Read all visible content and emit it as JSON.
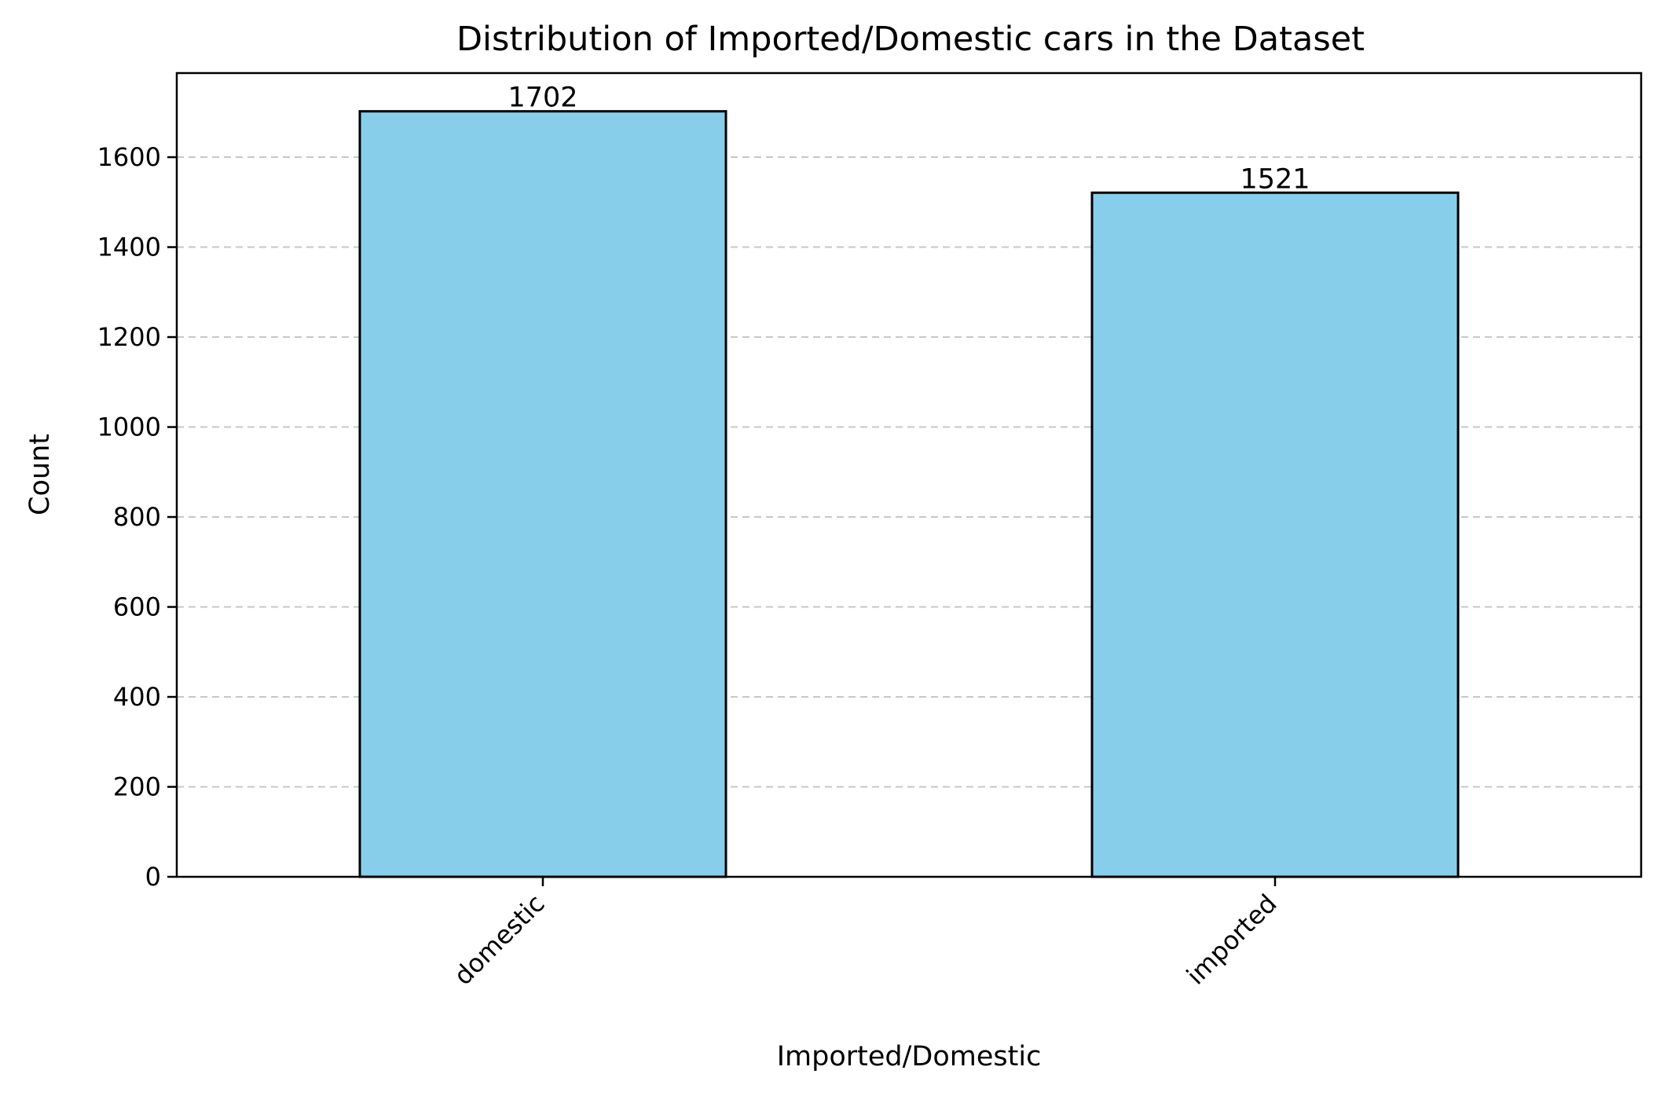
{
  "chart_data": {
    "type": "bar",
    "title": "Distribution of Imported/Domestic cars in the Dataset",
    "xlabel": "Imported/Domestic",
    "ylabel": "Count",
    "categories": [
      "domestic",
      "imported"
    ],
    "values": [
      1702,
      1521
    ],
    "data_labels": [
      "1702",
      "1521"
    ],
    "ylim": [
      0,
      1787
    ],
    "yticks": [
      0,
      200,
      400,
      600,
      800,
      1000,
      1200,
      1400,
      1600
    ],
    "ytick_labels": [
      "0",
      "200",
      "400",
      "600",
      "800",
      "1000",
      "1200",
      "1400",
      "1600"
    ],
    "grid": "y, dashed",
    "legend": "none",
    "bar_color": "#87CEEB",
    "edge_color": "#000000"
  }
}
